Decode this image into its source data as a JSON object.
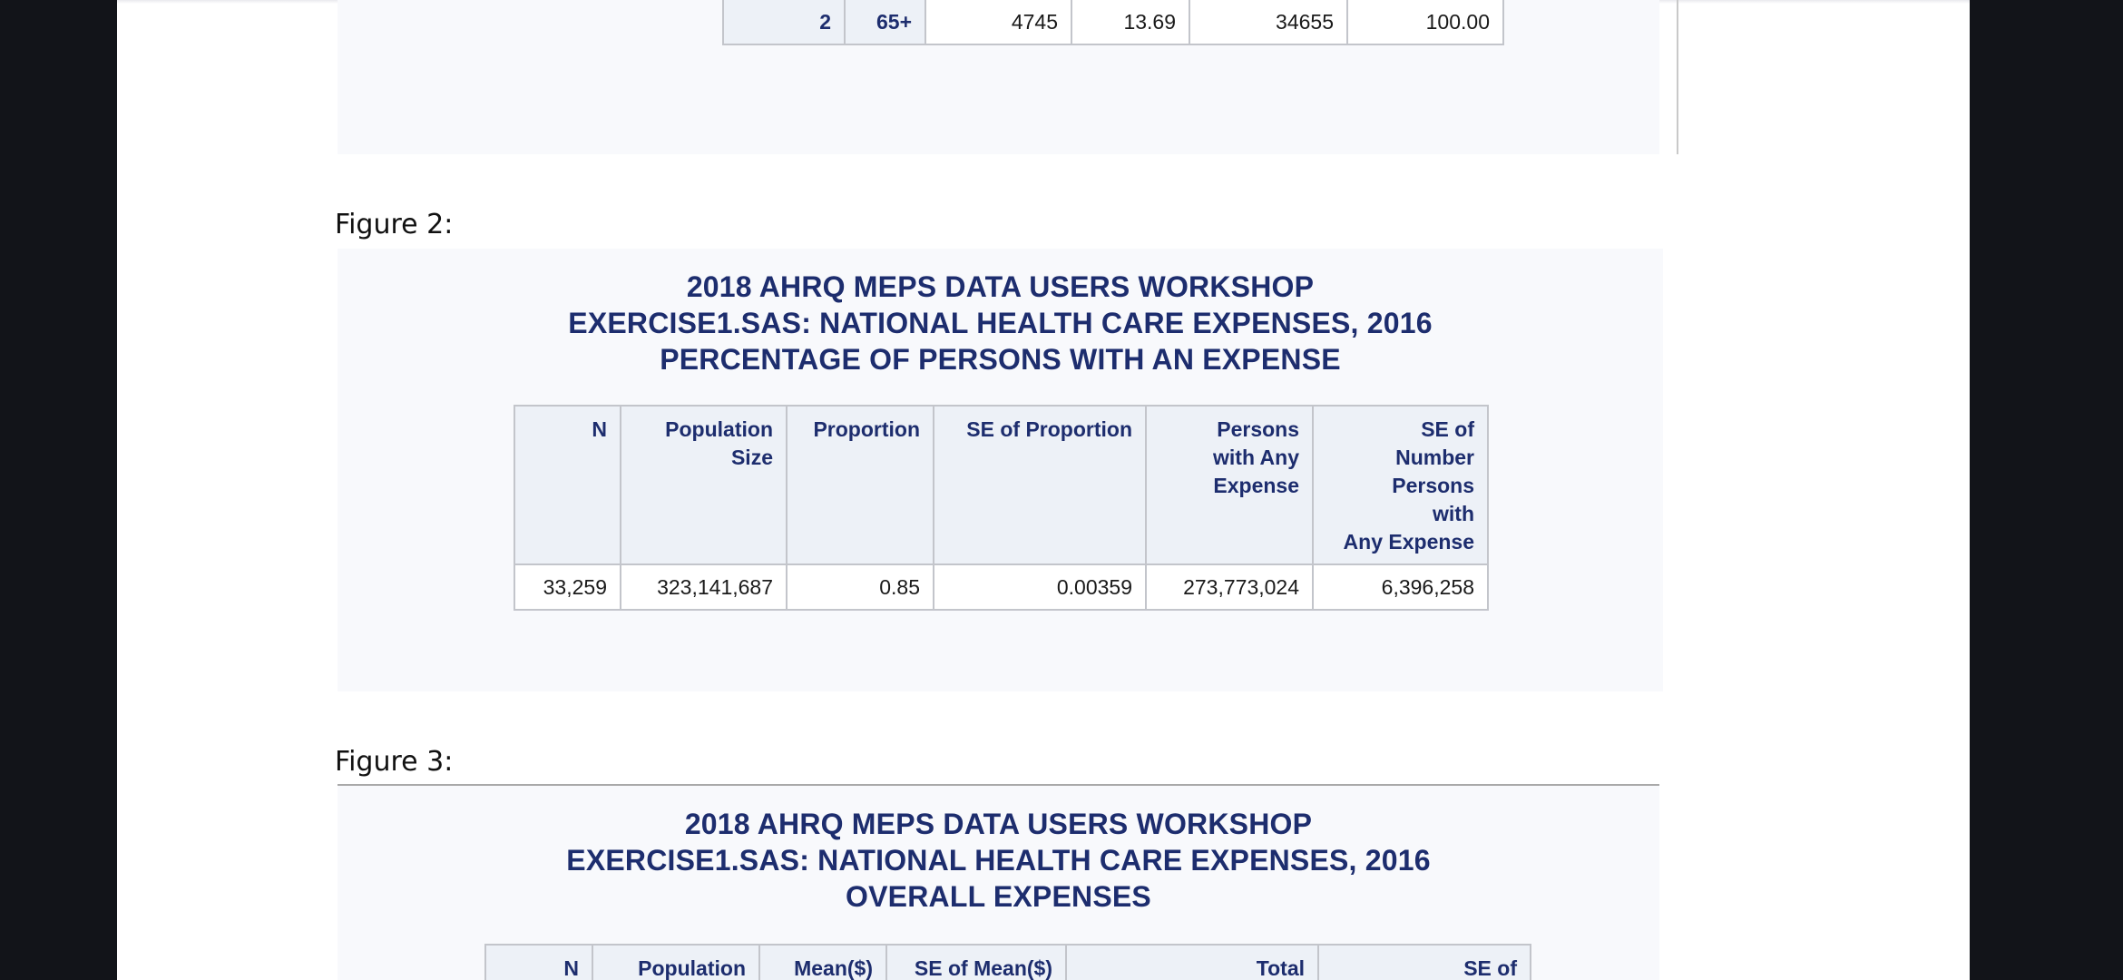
{
  "figure1": {
    "last_row": [
      "2",
      "65+",
      "4745",
      "13.69",
      "34655",
      "100.00"
    ]
  },
  "figure2": {
    "caption": "Figure 2:",
    "title_lines": [
      "2018 AHRQ MEPS DATA USERS WORKSHOP",
      "EXERCISE1.SAS: NATIONAL HEALTH CARE EXPENSES, 2016",
      "PERCENTAGE OF PERSONS WITH AN EXPENSE"
    ],
    "columns": [
      [
        "N"
      ],
      [
        "Population",
        "Size"
      ],
      [
        "Proportion"
      ],
      [
        "SE of Proportion"
      ],
      [
        "Persons",
        "with Any",
        "Expense"
      ],
      [
        "SE of",
        "Number",
        "Persons",
        "with",
        "Any Expense"
      ]
    ],
    "row": [
      "33,259",
      "323,141,687",
      "0.85",
      "0.00359",
      "273,773,024",
      "6,396,258"
    ]
  },
  "figure3": {
    "caption": "Figure 3:",
    "title_lines": [
      "2018 AHRQ MEPS DATA USERS WORKSHOP",
      "EXERCISE1.SAS: NATIONAL HEALTH CARE EXPENSES, 2016",
      "OVERALL EXPENSES"
    ],
    "columns": [
      "N",
      "Population",
      "Mean($)",
      "SE of Mean($)",
      "Total",
      "SE of"
    ]
  }
}
